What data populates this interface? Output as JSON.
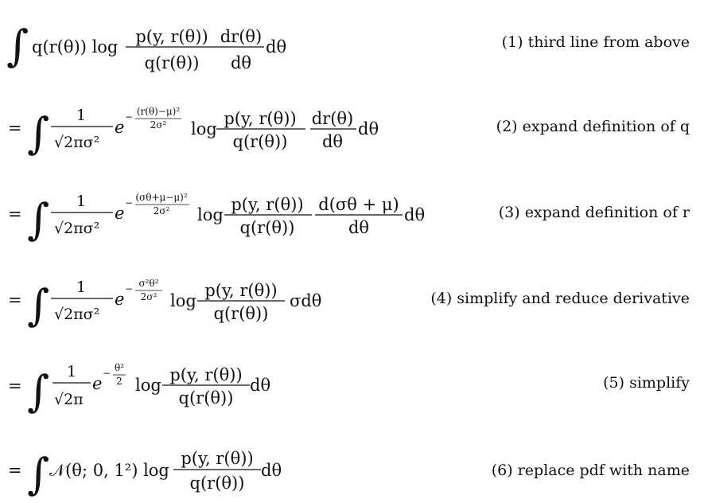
{
  "equations": [
    {
      "label": "(1) third line from above",
      "prefix": "",
      "lead": "q(r(θ)) log",
      "density": null,
      "log_term": {
        "numerator": "p(y, r(θ))",
        "denominator": "q(r(θ))"
      },
      "derivative": {
        "numerator": "dr(θ)",
        "denominator": "dθ"
      },
      "tail": "dθ"
    },
    {
      "label": "(2) expand definition of q",
      "prefix": "=",
      "density": {
        "numerator": "1",
        "denominator": "√2πσ²",
        "base": "e",
        "exponent_sign": "−",
        "exponent_numerator": "(r(θ)−μ)²",
        "exponent_denominator": "2σ²"
      },
      "lead": "log",
      "log_term": {
        "numerator": "p(y, r(θ))",
        "denominator": "q(r(θ))"
      },
      "derivative": {
        "numerator": "dr(θ)",
        "denominator": "dθ"
      },
      "tail": "dθ"
    },
    {
      "label": "(3) expand definition of r",
      "prefix": "=",
      "density": {
        "numerator": "1",
        "denominator": "√2πσ²",
        "base": "e",
        "exponent_sign": "−",
        "exponent_numerator": "(σθ+μ−μ)²",
        "exponent_denominator": "2σ²"
      },
      "lead": "log",
      "log_term": {
        "numerator": "p(y, r(θ))",
        "denominator": "q(r(θ))"
      },
      "derivative": {
        "numerator": "d(σθ + μ)",
        "denominator": "dθ"
      },
      "tail": "dθ"
    },
    {
      "label": "(4) simplify and reduce derivative",
      "prefix": "=",
      "density": {
        "numerator": "1",
        "denominator": "√2πσ²",
        "base": "e",
        "exponent_sign": "−",
        "exponent_numerator": "σ²θ²",
        "exponent_denominator": "2σ²"
      },
      "lead": "log",
      "log_term": {
        "numerator": "p(y, r(θ))",
        "denominator": "q(r(θ))"
      },
      "derivative": null,
      "tail": "σdθ"
    },
    {
      "label": "(5) simplify",
      "prefix": "=",
      "density": {
        "numerator": "1",
        "denominator": "√2π",
        "base": "e",
        "exponent_sign": "−",
        "exponent_numerator": "θ²",
        "exponent_denominator": "2"
      },
      "lead": "log",
      "log_term": {
        "numerator": "p(y, r(θ))",
        "denominator": "q(r(θ))"
      },
      "derivative": null,
      "tail": "dθ"
    },
    {
      "label": "(6) replace pdf with name",
      "prefix": "=",
      "density": null,
      "lead": "𝒩(θ; 0, 1²) log",
      "log_term": {
        "numerator": "p(y, r(θ))",
        "denominator": "q(r(θ))"
      },
      "derivative": null,
      "tail": "dθ"
    }
  ]
}
